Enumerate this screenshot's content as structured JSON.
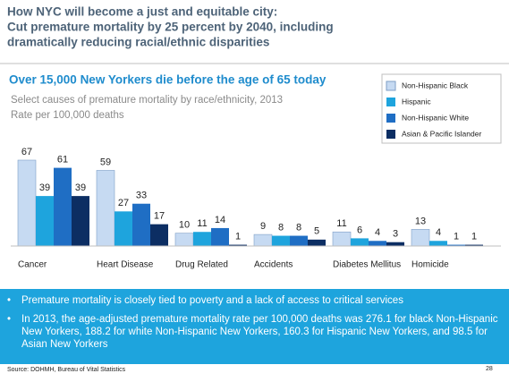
{
  "header": {
    "title_lines": [
      "How NYC will become a just and equitable city:",
      "Cut premature mortality by 25 percent by 2040, including",
      "dramatically reducing racial/ethnic disparities"
    ]
  },
  "chart_data": {
    "type": "bar",
    "title": "Over 15,000 New Yorkers die before the age of 65 today",
    "subtitle": "Select causes of premature mortality by race/ethnicity, 2013",
    "unit_label": "Rate per 100,000 deaths",
    "categories": [
      "Cancer",
      "Heart Disease",
      "Drug Related",
      "Accidents",
      "Diabetes Mellitus",
      "Homicide"
    ],
    "series": [
      {
        "name": "Non-Hispanic Black",
        "color": "#c6daf2",
        "values": [
          67,
          59,
          10,
          9,
          11,
          13
        ]
      },
      {
        "name": "Hispanic",
        "color": "#1ea4dd",
        "values": [
          39,
          27,
          11,
          8,
          6,
          4
        ]
      },
      {
        "name": "Non-Hispanic White",
        "color": "#1f6ec4",
        "values": [
          61,
          33,
          14,
          8,
          4,
          1
        ]
      },
      {
        "name": "Asian & Pacific Islander",
        "color": "#0c2e63",
        "values": [
          39,
          17,
          1,
          5,
          3,
          1
        ]
      }
    ]
  },
  "bullets": [
    "Premature mortality is closely tied to poverty and a lack of access to critical services",
    "In 2013, the age-adjusted premature mortality rate per 100,000 deaths was 276.1 for black Non-Hispanic New Yorkers, 188.2 for white Non-Hispanic New Yorkers, 160.3 for Hispanic New Yorkers, and 98.5 for Asian New Yorkers"
  ],
  "footer": {
    "source": "Source: DOHMH, Bureau of Vital Statistics",
    "page": "28"
  }
}
